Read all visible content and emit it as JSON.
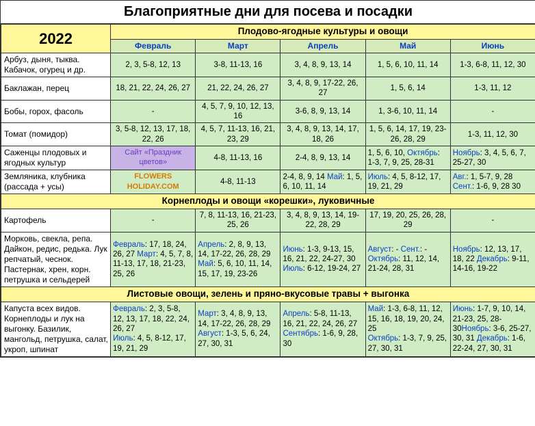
{
  "title": "Благоприятные дни для посева и посадки",
  "year": "2022",
  "section1": "Плодово-ягодные культуры и овощи",
  "section2": "Корнеплоды и овощи «корешки», луковичные",
  "section3": "Листовые овощи, зелень и пряно-вкусовые травы + выгонка",
  "months": {
    "feb": "Февраль",
    "mar": "Март",
    "apr": "Апрель",
    "may": "Май",
    "jun": "Июнь"
  },
  "rows": {
    "arbuz": {
      "label": "Арбуз, дыня, тыква. Кабачок, огурец и др.",
      "feb": "2, 3, 5-8, 12, 13",
      "mar": "3-8, 11-13, 16",
      "apr": "3, 4, 8, 9, 13, 14",
      "may": "1, 5, 6, 10, 11, 14",
      "jun": "1-3, 6-8, 11, 12, 30"
    },
    "baklazhan": {
      "label": "Баклажан, перец",
      "feb": "18, 21, 22, 24, 26, 27",
      "mar": "21, 22, 24, 26, 27",
      "apr": "3, 4, 8, 9, 17-22, 26, 27",
      "may": "1, 5, 6, 14",
      "jun": "1-3, 11, 12"
    },
    "boby": {
      "label": "Бобы, горох, фасоль",
      "feb": "-",
      "mar": "4, 5, 7, 9, 10, 12, 13, 16",
      "apr": "3-6, 8, 9, 13, 14",
      "may": "1, 3-6, 10, 11, 14",
      "jun": "-"
    },
    "tomat": {
      "label": "Томат (помидор)",
      "feb": "3, 5-8, 12, 13, 17, 18, 22, 26",
      "mar": "4, 5, 7, 11-13, 16, 21, 23, 29",
      "apr": "3, 4, 8, 9, 13, 14, 17, 18, 26",
      "may": "1, 5, 6, 14, 17, 19, 23-26, 28, 29",
      "jun": "1-3, 11, 12, 30"
    },
    "sazhentsy": {
      "label": "Саженцы плодовых и ягодных культур",
      "purple": "Сайт «Праздник цветов»",
      "mar": "4-8, 11-13, 16",
      "apr": "2-4, 8, 9, 13, 14",
      "may_pre": "1, 5, 6, 10, ",
      "may_okt_l": "Октябрь",
      "may_okt_v": ": 1-3, 7, 9, 25, 28-31",
      "jun_nov_l": "Ноябрь",
      "jun_nov_v": ": 3, 4, 5, 6, 7, 25-27, 30"
    },
    "zemlyanika": {
      "label": "Земляника, клубника (рассада + усы)",
      "orange": "FLOWERS HOLIDAY.COM",
      "mar": "4-8, 11-13",
      "apr_pre": "2-4, 8, 9, 14 ",
      "apr_may_l": "Май",
      "apr_may_v": ": 1, 5, 6, 10, 11, 14",
      "may_jul_l": "Июль",
      "may_jul_v": ": 4, 5, 8-12, 17, 19, 21, 29",
      "jun_avg_l": "Авг.",
      "jun_avg_v": ": 1, 5-7, 9, 28 ",
      "jun_sen_l": "Сент.",
      "jun_sen_v": ": 1-6, 9, 28 30"
    },
    "kartofel": {
      "label": "Картофель",
      "feb": "-",
      "mar": "7, 8, 11-13, 16, 21-23, 25, 26",
      "apr": "3, 4, 8, 9, 13, 14, 19-22, 28, 29",
      "may": "17, 19, 20, 25, 26, 28, 29",
      "jun": "-"
    },
    "morkov": {
      "label": "Морковь, свекла, репа. Дайкон, редис, редька. Лук репчатый, чеснок. Пастернак, хрен, корн. петрушка и сельдерей",
      "feb_l1": "Февраль",
      "feb_v1": ": 17, 18, 24, 26, 27 ",
      "feb_l2": "Март",
      "feb_v2": ": 4, 5, 7, 8, 11-13, 17, 18, 21-23, 25, 26",
      "mar_l1": "Апрель",
      "mar_v1": ": 2, 8, 9, 13, 14, 17-22, 26, 28, 29 ",
      "mar_l2": "Май",
      "mar_v2": ": 5, 6, 10, 11, 14, 15, 17, 19, 23-26",
      "apr_l1": "Июнь",
      "apr_v1": ": 1-3, 9-13, 15, 16, 21, 22, 24-27, 30 ",
      "apr_l2": "Июль",
      "apr_v2": ": 6-12, 19-24, 27",
      "may_l1": "Август",
      "may_v1": ": - ",
      "may_l2": "Сент.",
      "may_v2": ": - ",
      "may_l3": "Октябрь",
      "may_v3": ": 11, 12, 14, 21-24, 28, 31",
      "jun_l1": "Ноябрь",
      "jun_v1": ": 12, 13, 17, 18, 22 ",
      "jun_l2": "Декабрь",
      "jun_v2": ": 9-11, 14-16, 19-22"
    },
    "kapusta": {
      "label": "Капуста всех видов. Корнеплоды и лук на выгонку. Базилик, мангольд, петрушка, салат, укроп, шпинат",
      "feb_l1": "Февраль",
      "feb_v1": ": 2, 3, 5-8, 12, 13, 17, 18, 22, 24, 26, 27",
      "mar_l1": "Март",
      "mar_v1": ": 3, 4, 8, 9, 13, 14, 17-22, 26, 28, 29",
      "apr_l1": "Апрель",
      "apr_v1": ": 5-8, 11-13, 16, 21, 22, 24, 26, 27",
      "may_l1": "Май",
      "may_v1": ": 1-3, 6-8, 11, 12, 15, 16, 18, 19, 20, 24, 25",
      "jun_l1": "Июнь",
      "jun_v1": ": 1-7, 9, 10, 14, 21-23, 25, 28-30",
      "feb_l2": "Июль",
      "feb_v2": ": 4, 5, 8-12, 17, 19, 21, 29",
      "mar_l2": "Август",
      "mar_v2": ": 1-3, 5, 6, 24, 27, 30, 31",
      "apr_l2": "Сентябрь",
      "apr_v2": ": 1-6, 9, 28, 30",
      "may_l2": "Октябрь",
      "may_v2": ": 1-3, 7, 9, 25, 27, 30, 31",
      "jun_l2": "Ноябрь",
      "jun_v2": ": 3-6, 25-27, 30, 31 ",
      "jun_l3": "Декабрь",
      "jun_v3": ": 1-6, 22-24, 27, 30, 31"
    }
  }
}
